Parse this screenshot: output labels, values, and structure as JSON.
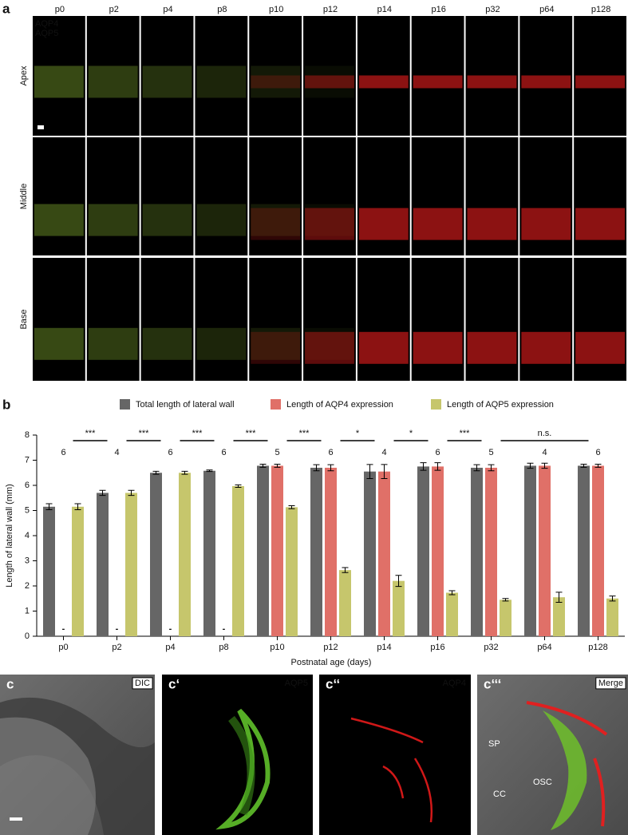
{
  "panel_a": {
    "label": "a",
    "columns": [
      "p0",
      "p2",
      "p4",
      "p8",
      "p10",
      "p12",
      "p14",
      "p16",
      "p32",
      "p64",
      "p128"
    ],
    "rows": [
      "Apex",
      "Middle",
      "Base"
    ],
    "legend": [
      {
        "name": "AQP4",
        "color": "#ff2020"
      },
      {
        "name": "AQP5",
        "color": "#9fd23a"
      }
    ]
  },
  "chart_data": {
    "type": "bar",
    "panel_label": "b",
    "categories": [
      "p0",
      "p2",
      "p4",
      "p8",
      "p10",
      "p12",
      "p14",
      "p16",
      "p32",
      "p64",
      "p128"
    ],
    "series": [
      {
        "name": "Total length of lateral wall",
        "color": "#666666",
        "values": [
          5.15,
          5.7,
          6.5,
          6.58,
          6.78,
          6.7,
          6.55,
          6.75,
          6.7,
          6.78,
          6.78
        ],
        "errors": [
          0.12,
          0.1,
          0.06,
          0.03,
          0.06,
          0.12,
          0.28,
          0.15,
          0.12,
          0.1,
          0.06
        ]
      },
      {
        "name": "Length of AQP4 expression",
        "color": "#e07068",
        "values": [
          null,
          null,
          null,
          null,
          6.78,
          6.7,
          6.55,
          6.75,
          6.7,
          6.78,
          6.78
        ],
        "value_labels": [
          "-",
          "-",
          "-",
          "-",
          null,
          null,
          null,
          null,
          null,
          null,
          null
        ],
        "errors": [
          null,
          null,
          null,
          null,
          0.06,
          0.12,
          0.28,
          0.15,
          0.12,
          0.1,
          0.06
        ]
      },
      {
        "name": "Length of AQP5 expression",
        "color": "#c6c66c",
        "values": [
          5.15,
          5.7,
          6.5,
          5.97,
          5.13,
          2.63,
          2.2,
          1.73,
          1.45,
          1.55,
          1.5
        ],
        "errors": [
          0.12,
          0.1,
          0.06,
          0.05,
          0.06,
          0.1,
          0.22,
          0.08,
          0.05,
          0.2,
          0.1
        ]
      }
    ],
    "ylim": [
      0,
      8
    ],
    "yticks": [
      0,
      1,
      2,
      3,
      4,
      5,
      6,
      7,
      8
    ],
    "y_label": "Length of lateral wall (mm)",
    "x_label": "Postnatal age (days)",
    "n_labels": [
      6,
      4,
      6,
      6,
      5,
      6,
      4,
      6,
      5,
      4,
      6
    ],
    "comparisons": [
      {
        "from": "p0",
        "to": "p2",
        "label": "***"
      },
      {
        "from": "p2",
        "to": "p4",
        "label": "***"
      },
      {
        "from": "p4",
        "to": "p8",
        "label": "***"
      },
      {
        "from": "p8",
        "to": "p10",
        "label": "***"
      },
      {
        "from": "p10",
        "to": "p12",
        "label": "***"
      },
      {
        "from": "p12",
        "to": "p14",
        "label": "*"
      },
      {
        "from": "p14",
        "to": "p16",
        "label": "*"
      },
      {
        "from": "p16",
        "to": "p32",
        "label": "***"
      },
      {
        "from": "p32",
        "to": "p128",
        "label": "n.s."
      }
    ]
  },
  "panel_c": {
    "panels": [
      {
        "label": "c",
        "tag": "DIC"
      },
      {
        "label": "c‘",
        "tag": "AQP5"
      },
      {
        "label": "c‘‘",
        "tag": "AQP4"
      },
      {
        "label": "c‘‘‘",
        "tag": "Merge"
      }
    ],
    "annotations": [
      "SP",
      "OSC",
      "CC"
    ]
  }
}
